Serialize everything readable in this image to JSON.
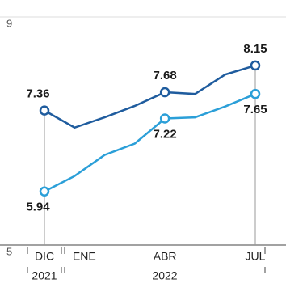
{
  "chart_data": {
    "type": "line",
    "categories": [
      "DIC",
      "ENE",
      null,
      null,
      "ABR",
      null,
      null,
      "JUL"
    ],
    "year_labels": [
      "2021",
      "2022"
    ],
    "series": [
      {
        "color": "#1f5c9e",
        "values": [
          7.36,
          7.06,
          7.24,
          7.44,
          7.68,
          7.65,
          7.99,
          8.15
        ]
      },
      {
        "color": "#2b9fd8",
        "values": [
          5.94,
          6.21,
          6.58,
          6.78,
          7.22,
          7.24,
          7.43,
          7.65
        ]
      }
    ],
    "label_indices": [
      0,
      4,
      7
    ],
    "ylim": [
      5,
      9
    ],
    "yticks": [
      5,
      9
    ],
    "grid": true
  }
}
